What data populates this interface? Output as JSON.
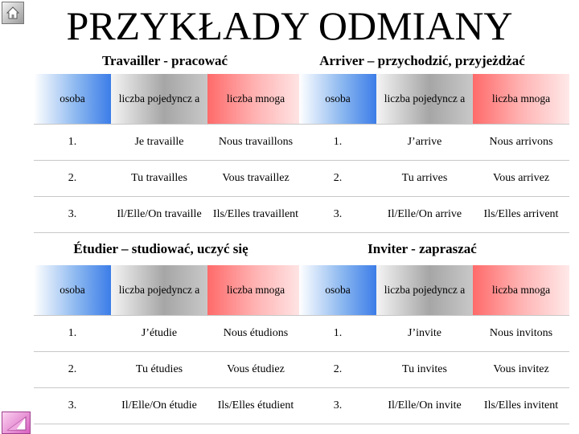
{
  "title": "PRZYKŁADY ODMIANY",
  "icons": {
    "home": "home-icon",
    "back": "back-arrow-icon"
  },
  "colors": {
    "osoba_header": "#3c7de8",
    "singular_header": "#a6a6a6",
    "plural_header": "#ff6a6a"
  },
  "tables": [
    {
      "title": "Travailler - pracować",
      "headers": [
        "osoba",
        "liczba pojedyncz a",
        "liczba mnoga"
      ],
      "rows": [
        [
          "1.",
          "Je travaille",
          "Nous travaillons"
        ],
        [
          "2.",
          "Tu travailles",
          "Vous travaillez"
        ],
        [
          "3.",
          "Il/Elle/On travaille",
          "Ils/Elles travaillent"
        ]
      ]
    },
    {
      "title": "Arriver – przychodzić, przyjeżdżać",
      "headers": [
        "osoba",
        "liczba pojedyncz a",
        "liczba mnoga"
      ],
      "rows": [
        [
          "1.",
          "J’arrive",
          "Nous arrivons"
        ],
        [
          "2.",
          "Tu arrives",
          "Vous arrivez"
        ],
        [
          "3.",
          "Il/Elle/On arrive",
          "Ils/Elles arrivent"
        ]
      ]
    },
    {
      "title": "Étudier – studiować, uczyć się",
      "headers": [
        "osoba",
        "liczba pojedyncz a",
        "liczba mnoga"
      ],
      "rows": [
        [
          "1.",
          "J’étudie",
          "Nous étudions"
        ],
        [
          "2.",
          "Tu étudies",
          "Vous étudiez"
        ],
        [
          "3.",
          "Il/Elle/On étudie",
          "Ils/Elles étudient"
        ]
      ]
    },
    {
      "title": "Inviter - zapraszać",
      "headers": [
        "osoba",
        "liczba pojedyncz a",
        "liczba mnoga"
      ],
      "rows": [
        [
          "1.",
          "J’invite",
          "Nous invitons"
        ],
        [
          "2.",
          "Tu invites",
          "Vous invitez"
        ],
        [
          "3.",
          "Il/Elle/On invite",
          "Ils/Elles invitent"
        ]
      ]
    }
  ]
}
